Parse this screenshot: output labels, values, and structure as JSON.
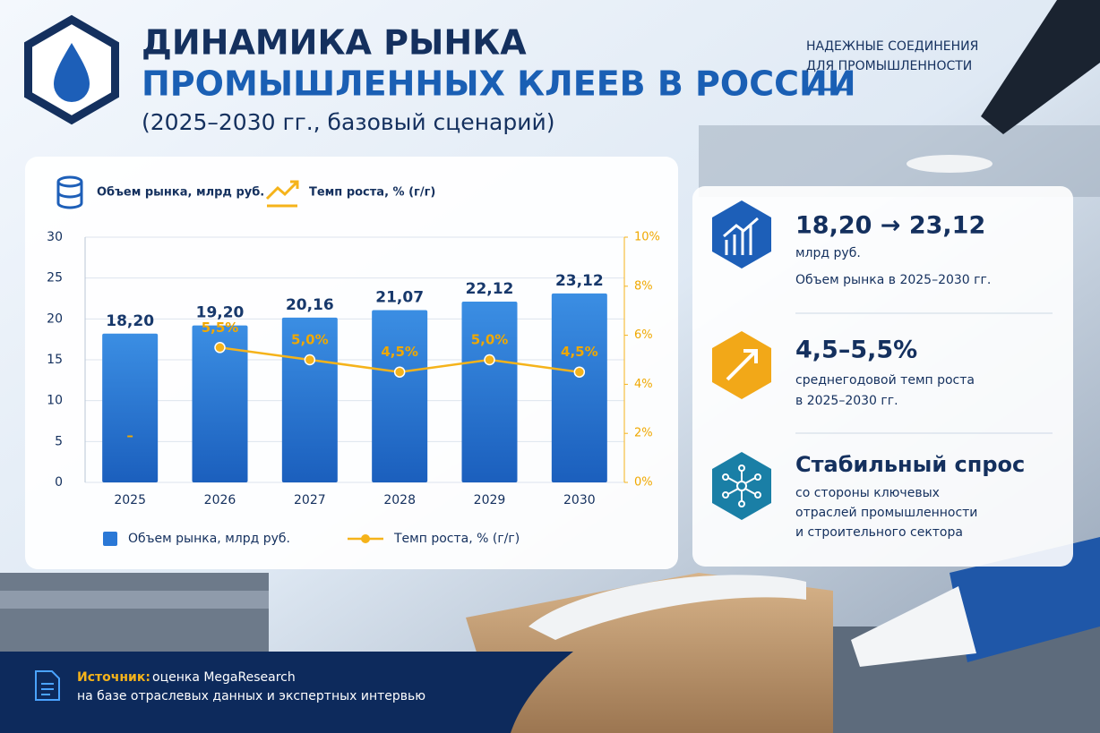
{
  "header": {
    "title_line1": "ДИНАМИКА РЫНКА",
    "title_line2": "ПРОМЫШЛЕННЫХ КЛЕЕВ В РОССИИ",
    "subtitle": "(2025–2030 гг., базовый сценарий)",
    "tagline_line1": "НАДЕЖНЫЕ СОЕДИНЕНИЯ",
    "tagline_line2": "ДЛЯ ПРОМЫШЛЕННОСТИ"
  },
  "chart_data": {
    "type": "bar",
    "ylabel": "Объем рынка, млрд руб.",
    "y2label": "Темп роста, % (г/г)",
    "categories": [
      "2025",
      "2026",
      "2027",
      "2028",
      "2029",
      "2030"
    ],
    "series": [
      {
        "name": "Объем рынка, млрд руб.",
        "type": "bar",
        "color": "#2a78d6",
        "values": [
          18.2,
          19.2,
          20.16,
          21.07,
          22.12,
          23.12
        ],
        "value_labels": [
          "18,20",
          "19,20",
          "20,16",
          "21,07",
          "22,12",
          "23,12"
        ]
      },
      {
        "name": "Темп роста, % (г/г)",
        "type": "line",
        "axis": "y2",
        "color": "#f5b31a",
        "values": [
          null,
          5.5,
          5.0,
          4.5,
          5.0,
          4.5
        ],
        "value_labels": [
          "–",
          "5,5%",
          "5,0%",
          "4,5%",
          "5,0%",
          "4,5%"
        ]
      }
    ],
    "ylim": [
      0,
      30
    ],
    "yticks": [
      0,
      5,
      10,
      15,
      20,
      25,
      30
    ],
    "y2lim": [
      0,
      10
    ],
    "y2ticks": [
      {
        "value": 0,
        "label": "0%"
      },
      {
        "value": 2,
        "label": "2%"
      },
      {
        "value": 4,
        "label": "4%"
      },
      {
        "value": 6,
        "label": "6%"
      },
      {
        "value": 8,
        "label": "8%"
      },
      {
        "value": 10,
        "label": "10%"
      }
    ],
    "grid": true
  },
  "highlights": [
    {
      "headline": "18,20 → 23,12",
      "lines": [
        "млрд руб.",
        "Объем рынка в 2025–2030 гг."
      ]
    },
    {
      "headline": "4,5–5,5%",
      "lines": [
        "среднегодовой темп роста",
        "в 2025–2030 гг."
      ]
    },
    {
      "headline": "Стабильный спрос",
      "lines": [
        "со стороны ключевых",
        "отраслей промышленности",
        "и строительного сектора"
      ]
    }
  ],
  "source": {
    "label": "Источник:",
    "text": "оценка MegaResearch",
    "line2": "на базе отраслевых данных и экспертных интервью"
  }
}
